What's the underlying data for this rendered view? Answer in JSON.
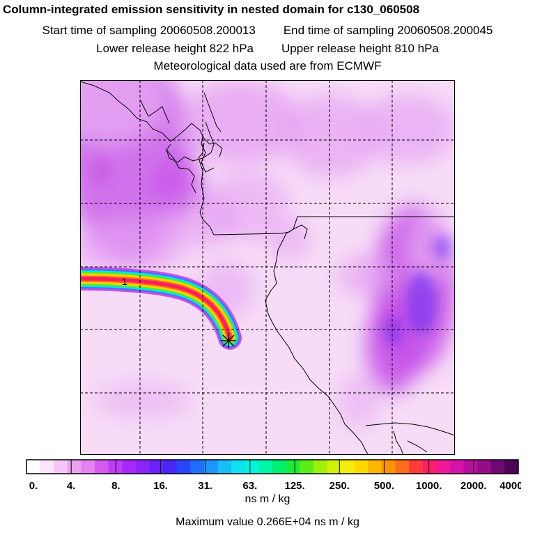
{
  "header": {
    "title": "Column-integrated emission sensitivity in nested domain for c130_060508",
    "start_time": "Start time of sampling 20060508.200013",
    "end_time": "End time of sampling 20060508.200045",
    "lower_release": "Lower release height  822 hPa",
    "upper_release": "Upper release height  810 hPa",
    "met_data": "Meteorological data used are from ECMWF"
  },
  "map": {
    "plume_label": "1",
    "release_marker": "star-marker",
    "grid": true,
    "colors": {
      "background_light": "#f7dcf7",
      "background_mid": "#e6a3f3",
      "background_strong": "#c44fe8",
      "hotspot": "#6a2ef0",
      "plume_core": "#ff1e62",
      "plume_mid": "#ffd200",
      "plume_edge": "#00e6e6",
      "coast": "#000000"
    }
  },
  "colorbar": {
    "ticks": [
      "0.",
      "4.",
      "8.",
      "16.",
      "31.",
      "63.",
      "125.",
      "250.",
      "500.",
      "1000.",
      "2000.",
      "4000."
    ],
    "colors": [
      "#ffffff",
      "#fde4fd",
      "#f6c6f6",
      "#eea2ee",
      "#e582ee",
      "#d45af0",
      "#c03cf6",
      "#a628fb",
      "#8c24fc",
      "#6a22fc",
      "#4a26fc",
      "#2a46fc",
      "#1f6ffc",
      "#1c96fc",
      "#18bef8",
      "#10e0f0",
      "#00f6dc",
      "#00f6a6",
      "#00ee6e",
      "#18ec38",
      "#5cee14",
      "#9ef00c",
      "#d2f00a",
      "#f2ee08",
      "#ffd800",
      "#ffb600",
      "#ff9400",
      "#ff6c1a",
      "#ff3c3c",
      "#ff1e6a",
      "#f01896",
      "#d614aa",
      "#b8109c",
      "#960c88",
      "#6e0872",
      "#4a0554"
    ],
    "unit": "ns m / kg"
  },
  "footer": {
    "max_value": "Maximum value  0.266E+04 ns m / kg"
  }
}
